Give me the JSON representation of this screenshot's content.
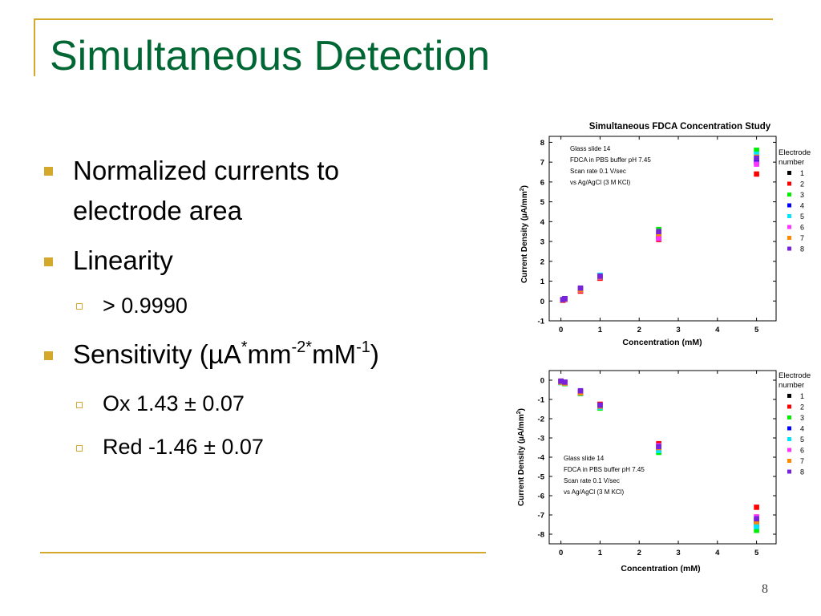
{
  "slide": {
    "title": "Simultaneous Detection",
    "page_number": "8",
    "colors": {
      "title": "#006633",
      "accent": "#d4a82a"
    }
  },
  "bullets": {
    "b1": "Normalized currents to",
    "b1_cont": "electrode area",
    "b2": "Linearity",
    "b2_sub1": "> 0.9990",
    "b3_prefix": "Sensitivity (µA",
    "b3_sup1": "*",
    "b3_mid1": "mm",
    "b3_sup2": "-2*",
    "b3_mid2": "mM",
    "b3_sup3": "-1",
    "b3_suffix": ")",
    "b3_sub1": "Ox 1.43 ± 0.07",
    "b3_sub2": "Red -1.46 ± 0.07"
  },
  "chart_data": [
    {
      "type": "scatter",
      "title": "Simultaneous FDCA Concentration Study",
      "xlabel": "Concentration (mM)",
      "ylabel_main": "Current Density (",
      "ylabel_mu": "µ",
      "ylabel_unit": "A/mm",
      "ylabel_sup": "2",
      "ylabel_close": ")",
      "xlim": [
        -0.3,
        5.5
      ],
      "ylim": [
        -1,
        8.3
      ],
      "xticks": [
        0,
        1,
        2,
        3,
        4,
        5
      ],
      "yticks": [
        -1,
        0,
        1,
        2,
        3,
        4,
        5,
        6,
        7,
        8
      ],
      "annotation": [
        "Glass slide 14",
        "FDCA in PBS buffer pH 7.45",
        "Scan rate 0.1 V/sec",
        "vs Ag/AgCl (3 M KCl)"
      ],
      "legend_title": [
        "Electrode",
        "number"
      ],
      "legend_placement": "right",
      "x": [
        0.05,
        0.1,
        0.5,
        1,
        2.5,
        5
      ],
      "series": [
        {
          "name": "1",
          "color": "#000000",
          "values": [
            0.05,
            0.1,
            0.55,
            1.2,
            3.25,
            7.0
          ]
        },
        {
          "name": "2",
          "color": "#ff0000",
          "values": [
            0.03,
            0.08,
            0.5,
            1.15,
            3.1,
            6.4
          ]
        },
        {
          "name": "3",
          "color": "#00ee00",
          "values": [
            0.06,
            0.12,
            0.6,
            1.25,
            3.6,
            7.6
          ]
        },
        {
          "name": "4",
          "color": "#0000ff",
          "values": [
            0.05,
            0.11,
            0.58,
            1.2,
            3.3,
            7.1
          ]
        },
        {
          "name": "5",
          "color": "#00e5ff",
          "values": [
            0.06,
            0.12,
            0.62,
            1.3,
            3.45,
            7.4
          ]
        },
        {
          "name": "6",
          "color": "#ff33ff",
          "values": [
            0.04,
            0.1,
            0.55,
            1.2,
            3.15,
            6.9
          ]
        },
        {
          "name": "7",
          "color": "#ff8800",
          "values": [
            0.05,
            0.1,
            0.57,
            1.22,
            3.4,
            7.25
          ]
        },
        {
          "name": "8",
          "color": "#7722dd",
          "values": [
            0.07,
            0.12,
            0.65,
            1.25,
            3.5,
            7.2
          ]
        }
      ]
    },
    {
      "type": "scatter",
      "title": "",
      "xlabel": "Concentration (mM)",
      "ylabel_main": "Current Density (",
      "ylabel_mu": "µ",
      "ylabel_unit": "A/mm",
      "ylabel_sup": "2",
      "ylabel_close": ")",
      "xlim": [
        -0.3,
        5.5
      ],
      "ylim": [
        -8.5,
        0.5
      ],
      "xticks": [
        0,
        1,
        2,
        3,
        4,
        5
      ],
      "yticks": [
        0,
        -1,
        -2,
        -3,
        -4,
        -5,
        -6,
        -7,
        -8
      ],
      "annotation": [
        "Glass slide 14",
        "FDCA in PBS buffer pH 7.45",
        "Scan rate 0.1 V/sec",
        "vs Ag/AgCl (3 M KCl)"
      ],
      "legend_title": [
        "Electrode",
        "number"
      ],
      "legend_placement": "right",
      "x": [
        0,
        0.1,
        0.5,
        1,
        2.5,
        5
      ],
      "series": [
        {
          "name": "1",
          "color": "#000000",
          "values": [
            -0.1,
            -0.15,
            -0.65,
            -1.3,
            -3.5,
            -7.3
          ]
        },
        {
          "name": "2",
          "color": "#ff0000",
          "values": [
            -0.05,
            -0.12,
            -0.6,
            -1.25,
            -3.3,
            -6.6
          ]
        },
        {
          "name": "3",
          "color": "#00ee00",
          "values": [
            -0.12,
            -0.18,
            -0.7,
            -1.45,
            -3.75,
            -7.8
          ]
        },
        {
          "name": "4",
          "color": "#0000ff",
          "values": [
            -0.1,
            -0.15,
            -0.65,
            -1.35,
            -3.55,
            -7.5
          ]
        },
        {
          "name": "5",
          "color": "#00e5ff",
          "values": [
            -0.12,
            -0.16,
            -0.68,
            -1.4,
            -3.65,
            -7.6
          ]
        },
        {
          "name": "6",
          "color": "#ff33ff",
          "values": [
            -0.08,
            -0.13,
            -0.62,
            -1.3,
            -3.4,
            -7.1
          ]
        },
        {
          "name": "7",
          "color": "#ff8800",
          "values": [
            -0.1,
            -0.15,
            -0.66,
            -1.35,
            -3.5,
            -7.35
          ]
        },
        {
          "name": "8",
          "color": "#7722dd",
          "values": [
            -0.05,
            -0.1,
            -0.55,
            -1.3,
            -3.45,
            -7.2
          ]
        }
      ]
    }
  ]
}
